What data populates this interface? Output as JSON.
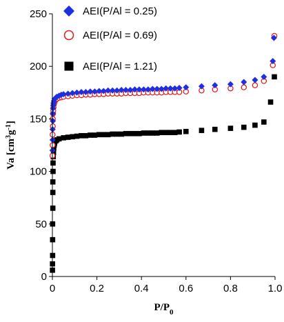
{
  "chart_data": {
    "type": "scatter",
    "title": "",
    "xlabel": {
      "main": "P/P",
      "sub": "0"
    },
    "ylabel": {
      "main": "Va [cm",
      "sup1": "3",
      "mid": "g",
      "sup2": "-1",
      "end": "]"
    },
    "xlim": [
      0,
      1.0
    ],
    "ylim": [
      0,
      250
    ],
    "xticks": [
      "0",
      "0.2",
      "0.4",
      "0.6",
      "0.8",
      "1.0"
    ],
    "yticks": [
      "0",
      "50",
      "100",
      "150",
      "200",
      "250"
    ],
    "grid": false,
    "legend": "top-left inside",
    "series": [
      {
        "name": "AEI(P/Al = 0.25)",
        "marker": "diamond",
        "color": "#1f2fe0",
        "x": [
          0.0005,
          0.001,
          0.001,
          0.002,
          0.002,
          0.003,
          0.004,
          0.005,
          0.007,
          0.01,
          0.015,
          0.02,
          0.03,
          0.04,
          0.05,
          0.07,
          0.09,
          0.11,
          0.13,
          0.15,
          0.17,
          0.19,
          0.21,
          0.23,
          0.25,
          0.27,
          0.29,
          0.31,
          0.33,
          0.35,
          0.37,
          0.39,
          0.41,
          0.43,
          0.45,
          0.47,
          0.49,
          0.51,
          0.53,
          0.55,
          0.57,
          0.6,
          0.67,
          0.73,
          0.8,
          0.86,
          0.91,
          0.95,
          0.99,
          0.995
        ],
        "y": [
          120,
          130,
          140,
          148,
          155,
          160,
          163,
          165,
          167,
          169,
          170,
          171,
          172,
          173,
          173.5,
          174,
          174.5,
          175,
          175.5,
          175.5,
          176,
          176,
          176.5,
          176.5,
          177,
          177,
          177,
          177.5,
          177.5,
          177.5,
          178,
          178,
          178,
          178,
          178.5,
          178.5,
          178.5,
          179,
          179,
          179,
          179.5,
          180,
          181,
          182,
          183,
          185,
          187,
          190,
          205,
          227
        ]
      },
      {
        "name": "AEI(P/Al = 0.69)",
        "marker": "circle-open",
        "color": "#e02020",
        "x": [
          0.0005,
          0.001,
          0.001,
          0.002,
          0.002,
          0.003,
          0.004,
          0.005,
          0.007,
          0.01,
          0.015,
          0.02,
          0.03,
          0.04,
          0.05,
          0.07,
          0.09,
          0.11,
          0.13,
          0.15,
          0.17,
          0.19,
          0.21,
          0.23,
          0.25,
          0.27,
          0.29,
          0.31,
          0.33,
          0.35,
          0.37,
          0.39,
          0.41,
          0.43,
          0.45,
          0.47,
          0.49,
          0.51,
          0.53,
          0.55,
          0.57,
          0.6,
          0.67,
          0.73,
          0.8,
          0.86,
          0.91,
          0.95,
          0.99,
          0.997
        ],
        "y": [
          115,
          125,
          135,
          143,
          150,
          155,
          158,
          161,
          164,
          166,
          168,
          169,
          170,
          170.5,
          171,
          171.5,
          172,
          172.5,
          172.5,
          173,
          173,
          173.5,
          173.5,
          173.5,
          174,
          174,
          174,
          174,
          174.5,
          174.5,
          174.5,
          174.5,
          175,
          175,
          175,
          175,
          175,
          175.5,
          175.5,
          175.5,
          175.5,
          176,
          177,
          178,
          179,
          180,
          182,
          186,
          201,
          229
        ]
      },
      {
        "name": "AEI(P/Al = 1.21)",
        "marker": "square",
        "color": "#000000",
        "x": [
          0.0003,
          0.0005,
          0.001,
          0.001,
          0.001,
          0.002,
          0.002,
          0.002,
          0.003,
          0.003,
          0.004,
          0.005,
          0.006,
          0.008,
          0.01,
          0.015,
          0.02,
          0.03,
          0.05,
          0.07,
          0.09,
          0.11,
          0.13,
          0.15,
          0.17,
          0.19,
          0.21,
          0.23,
          0.25,
          0.27,
          0.29,
          0.31,
          0.33,
          0.35,
          0.37,
          0.39,
          0.41,
          0.43,
          0.45,
          0.47,
          0.49,
          0.51,
          0.53,
          0.55,
          0.57,
          0.6,
          0.67,
          0.73,
          0.8,
          0.86,
          0.91,
          0.95,
          0.98,
          0.997
        ],
        "y": [
          6,
          12,
          20,
          35,
          50,
          65,
          80,
          90,
          100,
          108,
          114,
          118,
          122,
          125,
          127,
          129,
          130,
          131,
          132,
          132.5,
          133,
          133.5,
          134,
          134,
          134.5,
          134.5,
          135,
          135,
          135,
          135.5,
          135.5,
          135.5,
          136,
          136,
          136,
          136,
          136.5,
          136.5,
          136.5,
          136.5,
          137,
          137,
          137,
          137,
          137.5,
          138,
          139,
          140,
          141,
          142,
          144,
          147,
          166,
          190
        ]
      }
    ]
  }
}
